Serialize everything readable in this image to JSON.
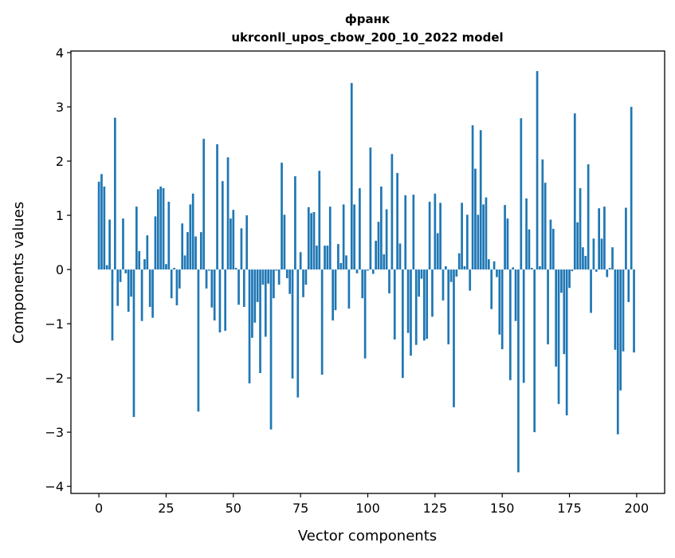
{
  "chart_data": {
    "type": "bar",
    "title": "франк",
    "subtitle": "ukrconll_upos_cbow_200_10_2022 model",
    "xlabel": "Vector components",
    "ylabel": "Components values",
    "xlim": [
      -10.4,
      210.4
    ],
    "ylim": [
      -4.13,
      4.03
    ],
    "xticks": [
      0,
      25,
      50,
      75,
      100,
      125,
      150,
      175,
      200
    ],
    "xtick_labels": [
      "0",
      "25",
      "50",
      "75",
      "100",
      "125",
      "150",
      "175",
      "200"
    ],
    "yticks": [
      -4,
      -3,
      -2,
      -1,
      0,
      1,
      2,
      3,
      4
    ],
    "ytick_labels": [
      "−4",
      "−3",
      "−2",
      "−1",
      "0",
      "1",
      "2",
      "3",
      "4"
    ],
    "grid": false,
    "bar_color": "#1f77b4",
    "values": [
      1.62,
      1.76,
      1.53,
      0.08,
      0.92,
      -1.31,
      2.8,
      -0.67,
      -0.23,
      0.94,
      -0.07,
      -0.78,
      -0.5,
      -2.72,
      1.16,
      0.34,
      -0.95,
      0.19,
      0.63,
      -0.69,
      -0.89,
      0.98,
      1.48,
      1.53,
      1.5,
      0.1,
      1.25,
      -0.53,
      0.03,
      -0.66,
      -0.35,
      0.85,
      0.26,
      0.69,
      1.2,
      1.4,
      0.61,
      -2.62,
      0.69,
      2.41,
      -0.35,
      -0.02,
      -0.7,
      -0.94,
      2.31,
      -1.16,
      1.63,
      -1.13,
      2.07,
      0.94,
      1.1,
      0.03,
      -0.65,
      0.76,
      -0.69,
      1.0,
      -2.1,
      -1.26,
      -0.98,
      -0.6,
      -1.91,
      -0.28,
      -1.24,
      -0.26,
      -2.95,
      -0.53,
      -0.02,
      -0.28,
      1.97,
      1.01,
      -0.16,
      -0.45,
      -2.01,
      1.72,
      -2.36,
      0.32,
      -0.51,
      -0.28,
      1.15,
      1.04,
      1.06,
      0.44,
      1.82,
      -1.94,
      0.44,
      0.44,
      1.16,
      -0.94,
      -0.75,
      0.47,
      0.12,
      1.2,
      0.26,
      -0.72,
      3.44,
      1.2,
      -0.07,
      1.5,
      -0.53,
      -1.64,
      -0.02,
      2.25,
      -0.08,
      0.53,
      0.88,
      1.53,
      0.28,
      1.11,
      -0.44,
      2.13,
      -1.29,
      1.78,
      0.48,
      -2.0,
      1.37,
      -1.17,
      -1.59,
      1.38,
      -1.39,
      -0.5,
      -0.17,
      -1.31,
      -1.28,
      1.25,
      -0.87,
      1.4,
      0.67,
      1.23,
      -0.57,
      0.06,
      -1.38,
      -0.23,
      -2.54,
      -0.13,
      0.3,
      1.23,
      0.06,
      1.01,
      -0.39,
      2.66,
      1.86,
      1.01,
      2.57,
      1.2,
      1.33,
      0.19,
      -0.73,
      0.15,
      -0.14,
      -1.2,
      -1.47,
      1.19,
      0.94,
      -2.04,
      0.04,
      -0.95,
      -3.74,
      2.79,
      -2.09,
      1.31,
      0.74,
      0.03,
      -3.0,
      3.66,
      0.06,
      2.03,
      1.6,
      -1.38,
      0.92,
      0.75,
      -1.79,
      -2.48,
      -0.43,
      -1.56,
      -2.69,
      -0.34,
      -0.03,
      2.88,
      0.87,
      1.5,
      0.41,
      0.25,
      1.94,
      -0.8,
      0.57,
      -0.04,
      1.13,
      0.57,
      1.16,
      -0.14,
      0.03,
      0.41,
      -1.48,
      -3.04,
      -2.23,
      -1.51,
      1.14,
      -0.6,
      3.0,
      -1.53
    ]
  }
}
